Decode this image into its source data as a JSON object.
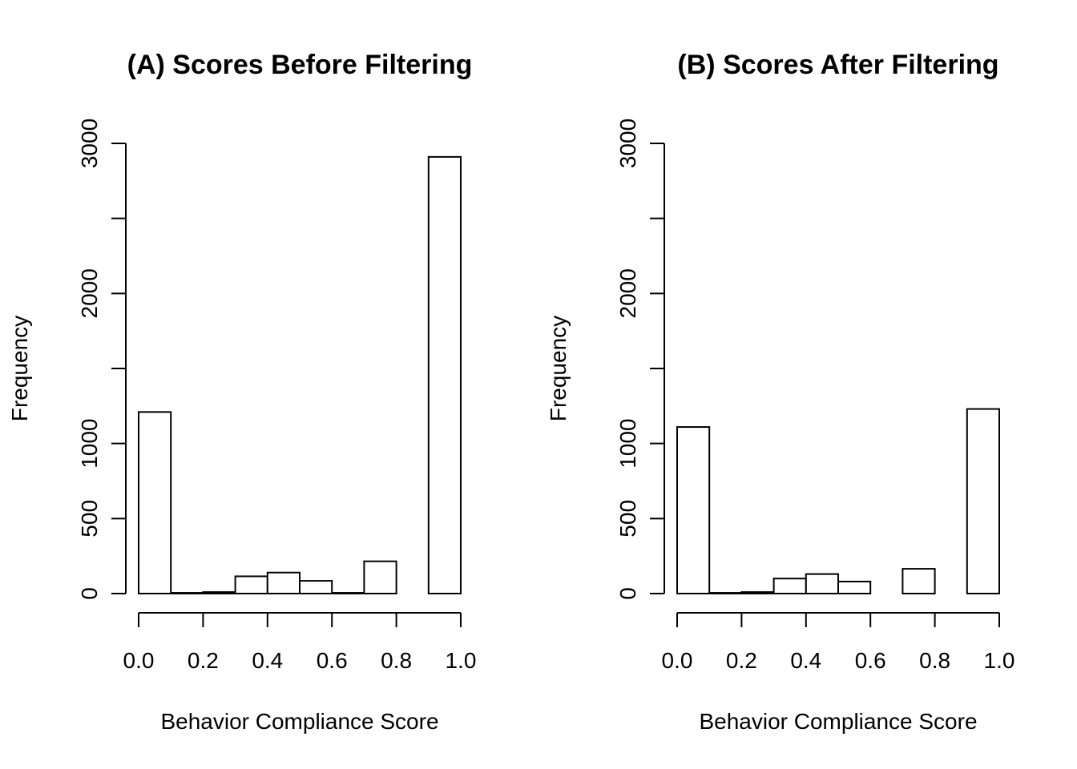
{
  "chart_data": [
    {
      "type": "bar",
      "subtype": "histogram",
      "title": "(A) Scores Before Filtering",
      "xlabel": "Behavior Compliance Score",
      "ylabel": "Frequency",
      "xlim": [
        0,
        1
      ],
      "ylim": [
        0,
        3000
      ],
      "x_ticks": [
        "0.0",
        "0.2",
        "0.4",
        "0.6",
        "0.8",
        "1.0"
      ],
      "y_ticks": [
        {
          "value": 0,
          "label": "0"
        },
        {
          "value": 500,
          "label": "500"
        },
        {
          "value": 1000,
          "label": "1000"
        },
        {
          "value": 1500,
          "label": ""
        },
        {
          "value": 2000,
          "label": "2000"
        },
        {
          "value": 2500,
          "label": ""
        },
        {
          "value": 3000,
          "label": "3000"
        }
      ],
      "bins": [
        {
          "start": 0.0,
          "end": 0.1,
          "value": 1210
        },
        {
          "start": 0.1,
          "end": 0.2,
          "value": 5
        },
        {
          "start": 0.2,
          "end": 0.3,
          "value": 10
        },
        {
          "start": 0.3,
          "end": 0.4,
          "value": 115
        },
        {
          "start": 0.4,
          "end": 0.5,
          "value": 140
        },
        {
          "start": 0.5,
          "end": 0.6,
          "value": 85
        },
        {
          "start": 0.6,
          "end": 0.7,
          "value": 5
        },
        {
          "start": 0.7,
          "end": 0.8,
          "value": 215
        },
        {
          "start": 0.8,
          "end": 0.9,
          "value": 0
        },
        {
          "start": 0.9,
          "end": 1.0,
          "value": 2910
        }
      ],
      "grid": false
    },
    {
      "type": "bar",
      "subtype": "histogram",
      "title": "(B) Scores After Filtering",
      "xlabel": "Behavior Compliance Score",
      "ylabel": "Frequency",
      "xlim": [
        0,
        1
      ],
      "ylim": [
        0,
        3000
      ],
      "x_ticks": [
        "0.0",
        "0.2",
        "0.4",
        "0.6",
        "0.8",
        "1.0"
      ],
      "y_ticks": [
        {
          "value": 0,
          "label": "0"
        },
        {
          "value": 500,
          "label": "500"
        },
        {
          "value": 1000,
          "label": "1000"
        },
        {
          "value": 1500,
          "label": ""
        },
        {
          "value": 2000,
          "label": "2000"
        },
        {
          "value": 2500,
          "label": ""
        },
        {
          "value": 3000,
          "label": "3000"
        }
      ],
      "bins": [
        {
          "start": 0.0,
          "end": 0.1,
          "value": 1110
        },
        {
          "start": 0.1,
          "end": 0.2,
          "value": 5
        },
        {
          "start": 0.2,
          "end": 0.3,
          "value": 10
        },
        {
          "start": 0.3,
          "end": 0.4,
          "value": 100
        },
        {
          "start": 0.4,
          "end": 0.5,
          "value": 130
        },
        {
          "start": 0.5,
          "end": 0.6,
          "value": 80
        },
        {
          "start": 0.6,
          "end": 0.7,
          "value": 0
        },
        {
          "start": 0.7,
          "end": 0.8,
          "value": 165
        },
        {
          "start": 0.8,
          "end": 0.9,
          "value": 0
        },
        {
          "start": 0.9,
          "end": 1.0,
          "value": 1230
        }
      ],
      "grid": false
    }
  ]
}
